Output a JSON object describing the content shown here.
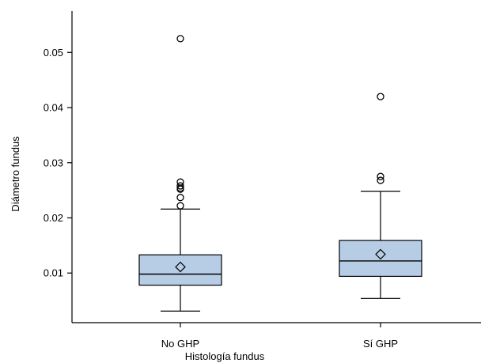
{
  "chart_data": {
    "type": "box",
    "xlabel": "Histología fundus",
    "ylabel": "Diámetro fundus",
    "ylim": [
      0.001,
      0.0575
    ],
    "yticks": [
      0.01,
      0.02,
      0.03,
      0.04,
      0.05
    ],
    "ytick_labels": [
      "0.01",
      "0.02",
      "0.03",
      "0.04",
      "0.05"
    ],
    "grid": false,
    "colors": {
      "box_fill": "#b7cde6",
      "stroke": "#000000"
    },
    "categories": [
      "No GHP",
      "Sí GHP"
    ],
    "boxes": [
      {
        "category": "No GHP",
        "whisker_low": 0.0031,
        "q1": 0.0078,
        "median": 0.0098,
        "q3": 0.0133,
        "whisker_high": 0.0216,
        "mean": 0.0111,
        "outliers": [
          0.0222,
          0.0237,
          0.0252,
          0.0254,
          0.0258,
          0.0265,
          0.0525
        ]
      },
      {
        "category": "Sí GHP",
        "whisker_low": 0.0054,
        "q1": 0.0094,
        "median": 0.0122,
        "q3": 0.0159,
        "whisker_high": 0.0248,
        "mean": 0.0134,
        "outliers": [
          0.0268,
          0.0275,
          0.042
        ]
      }
    ]
  }
}
